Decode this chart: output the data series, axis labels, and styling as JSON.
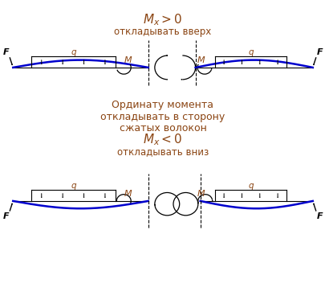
{
  "bg_color": "#ffffff",
  "text_color": "#8B4513",
  "line_color": "#000000",
  "blue_color": "#0000CD",
  "fig_width": 4.06,
  "fig_height": 3.73,
  "subtitle1": "откладывать вверх",
  "mid_text1": "Ординату момента",
  "mid_text2": "откладывать в сторону",
  "mid_text3": "сжатых волокон",
  "subtitle2": "откладывать вниз",
  "label_F": "F",
  "label_q": "q",
  "label_M": "M"
}
